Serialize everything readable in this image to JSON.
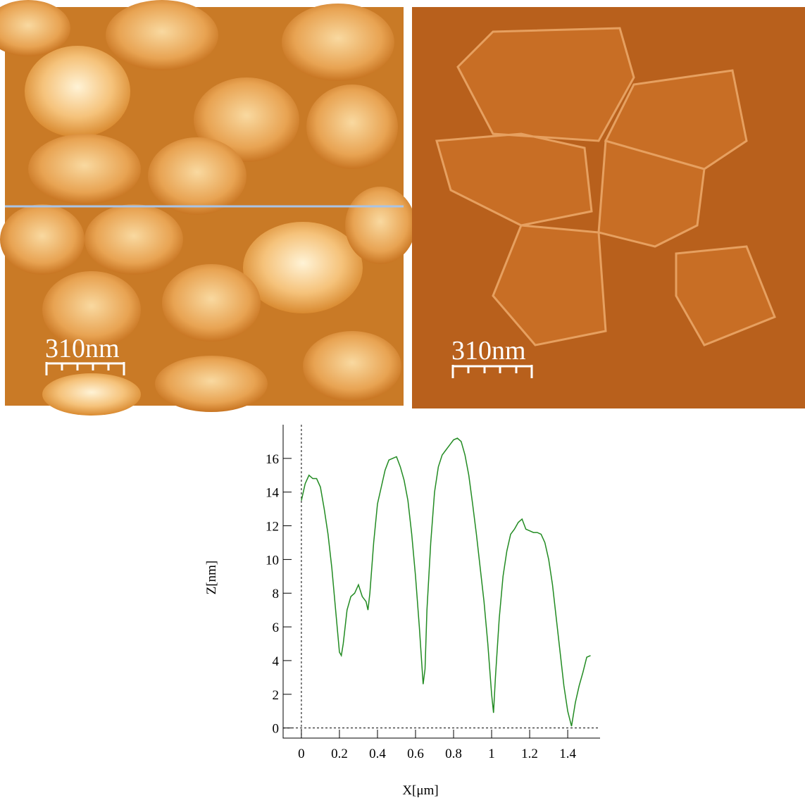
{
  "images": [
    {
      "scale_label": "310nm"
    },
    {
      "scale_label": "310nm"
    }
  ],
  "chart_data": {
    "type": "line",
    "x_label": "X[μm]",
    "y_label": "Z[nm]",
    "x": [
      0,
      0.02,
      0.04,
      0.06,
      0.08,
      0.1,
      0.12,
      0.14,
      0.16,
      0.18,
      0.2,
      0.21,
      0.22,
      0.24,
      0.26,
      0.28,
      0.3,
      0.32,
      0.34,
      0.35,
      0.36,
      0.38,
      0.4,
      0.42,
      0.44,
      0.46,
      0.48,
      0.5,
      0.52,
      0.54,
      0.56,
      0.58,
      0.6,
      0.62,
      0.64,
      0.65,
      0.66,
      0.68,
      0.7,
      0.72,
      0.74,
      0.76,
      0.78,
      0.8,
      0.82,
      0.84,
      0.86,
      0.88,
      0.9,
      0.92,
      0.94,
      0.96,
      0.98,
      1.0,
      1.01,
      1.02,
      1.04,
      1.06,
      1.08,
      1.1,
      1.12,
      1.14,
      1.16,
      1.18,
      1.2,
      1.22,
      1.24,
      1.26,
      1.28,
      1.3,
      1.32,
      1.34,
      1.36,
      1.38,
      1.4,
      1.42,
      1.44,
      1.46,
      1.48,
      1.5,
      1.52
    ],
    "series": [
      {
        "color": "#228b22",
        "values": [
          13.5,
          14.5,
          15,
          14.8,
          14.8,
          14.3,
          13,
          11.5,
          9.5,
          7,
          4.5,
          4.3,
          5,
          7,
          7.8,
          8,
          8.5,
          7.8,
          7.5,
          7,
          8,
          11,
          13.3,
          14.3,
          15.3,
          15.9,
          16,
          16.1,
          15.5,
          14.7,
          13.5,
          11.5,
          9,
          6,
          2.6,
          3.5,
          7,
          11,
          14,
          15.5,
          16.2,
          16.5,
          16.8,
          17.1,
          17.2,
          17,
          16.2,
          15,
          13.3,
          11.5,
          9.5,
          7.5,
          5,
          2,
          0.9,
          3,
          6.5,
          9,
          10.5,
          11.5,
          11.8,
          12.2,
          12.4,
          11.8,
          11.7,
          11.6,
          11.6,
          11.5,
          11,
          10,
          8.5,
          6.5,
          4.5,
          2.5,
          1,
          0.1,
          1.5,
          2.5,
          3.3,
          4.2,
          4.3
        ]
      }
    ],
    "xlim": [
      -0.096,
      1.57
    ],
    "ylim": [
      -0.6,
      18
    ],
    "xticks": [
      0,
      0.2,
      0.4,
      0.6,
      0.8,
      1,
      1.2,
      1.4
    ],
    "yticks": [
      0,
      2,
      4,
      6,
      8,
      10,
      12,
      14,
      16
    ],
    "zero_lines": true
  }
}
